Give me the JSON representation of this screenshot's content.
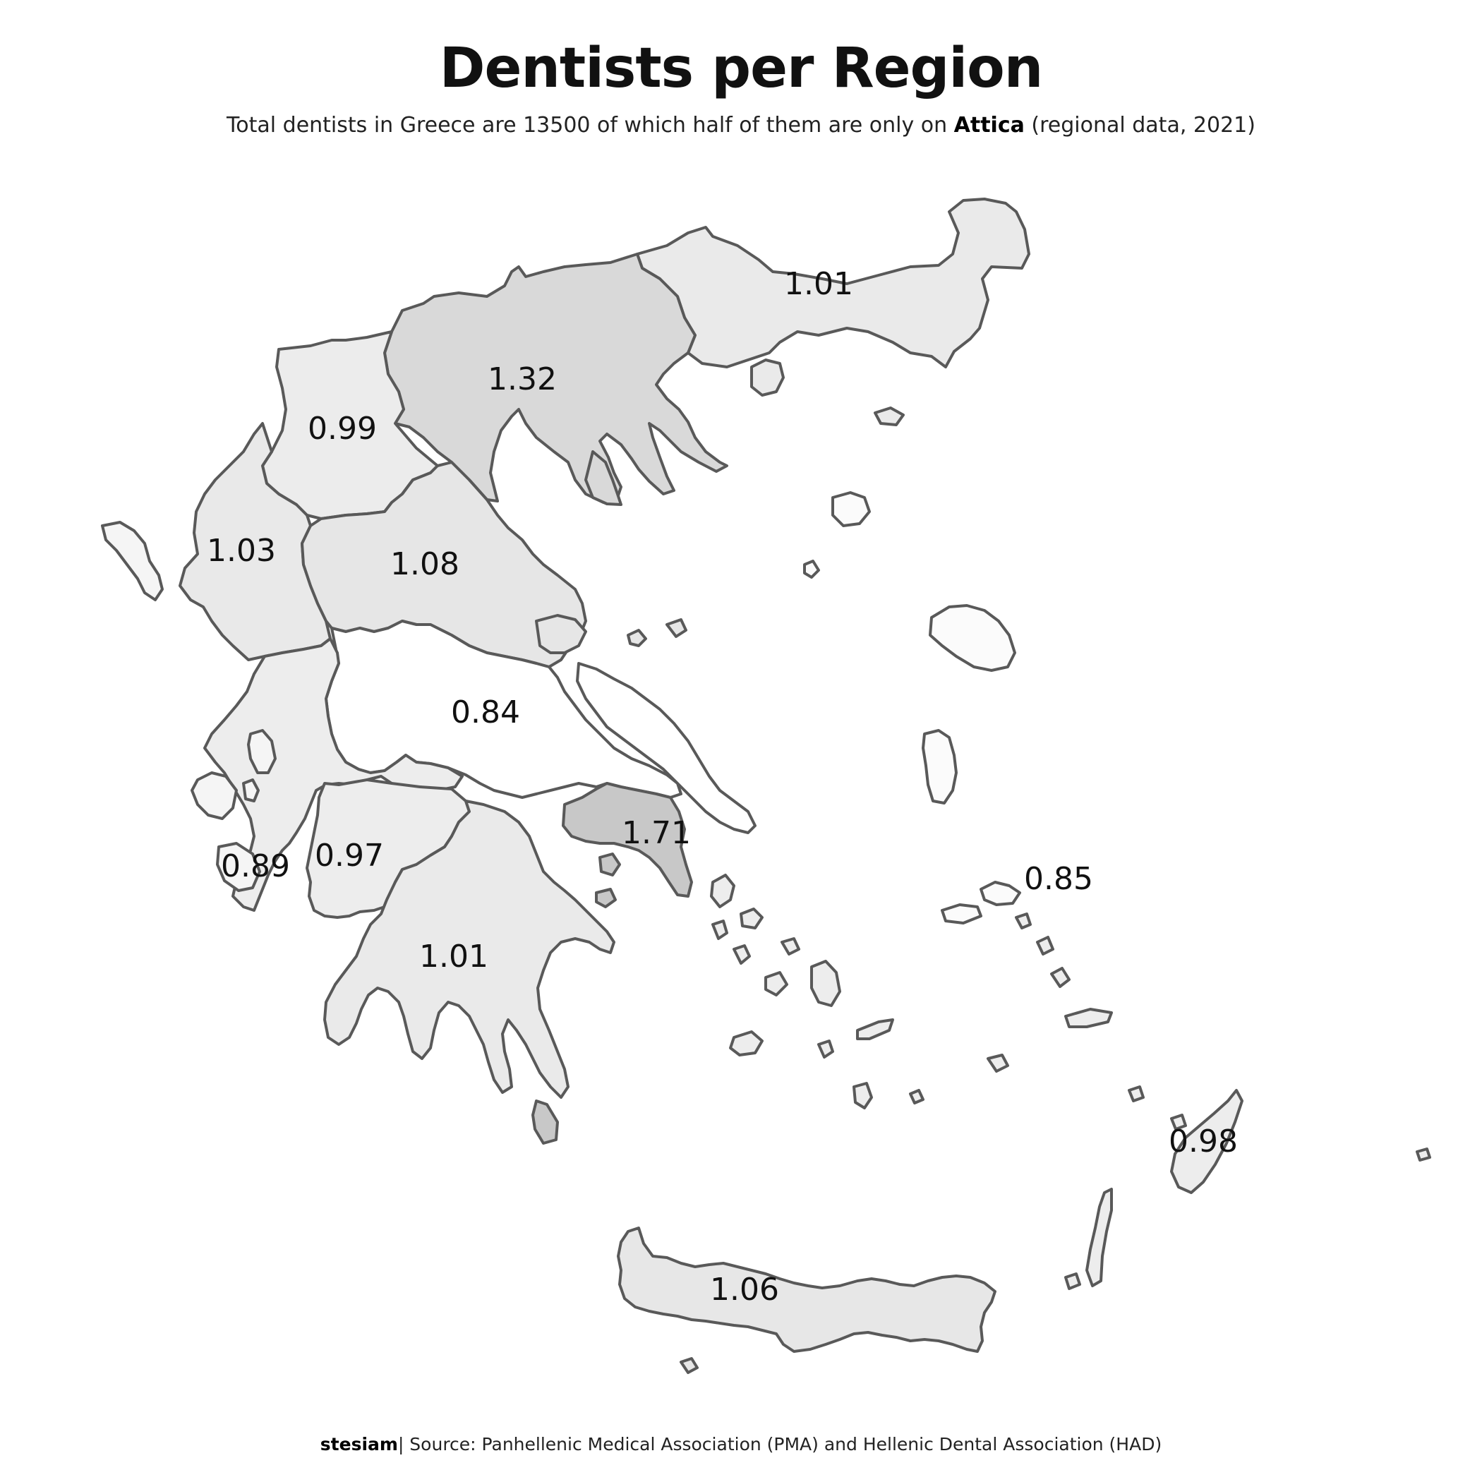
{
  "title": "Dentists per Region",
  "subtitle": {
    "before": "Total dentists in Greece are 13500 of which half of them are only on ",
    "highlight": "Attica",
    "after": " (regional  data, 2021)"
  },
  "caption": {
    "author": "stesiam",
    "source": "| Source: Panhellenic Medical Association (PMA) and Hellenic Dental Association (HAD)"
  },
  "colors": {
    "outline": "#595959",
    "lowest": "#ffffff",
    "highest": "#c8c8c8"
  },
  "regions": [
    {
      "id": "eastern-macedonia-thrace",
      "value": "1.01"
    },
    {
      "id": "central-macedonia",
      "value": "1.32"
    },
    {
      "id": "western-macedonia",
      "value": "0.99"
    },
    {
      "id": "epirus",
      "value": "1.03"
    },
    {
      "id": "thessaly",
      "value": "1.08"
    },
    {
      "id": "central-greece",
      "value": "0.84"
    },
    {
      "id": "attica",
      "value": "1.71"
    },
    {
      "id": "ionian-islands",
      "value": "0.89"
    },
    {
      "id": "western-greece",
      "value": "0.97"
    },
    {
      "id": "peloponnese",
      "value": "1.01"
    },
    {
      "id": "north-aegean",
      "value": "0.85"
    },
    {
      "id": "south-aegean",
      "value": "0.98"
    },
    {
      "id": "crete",
      "value": "1.06"
    }
  ]
}
